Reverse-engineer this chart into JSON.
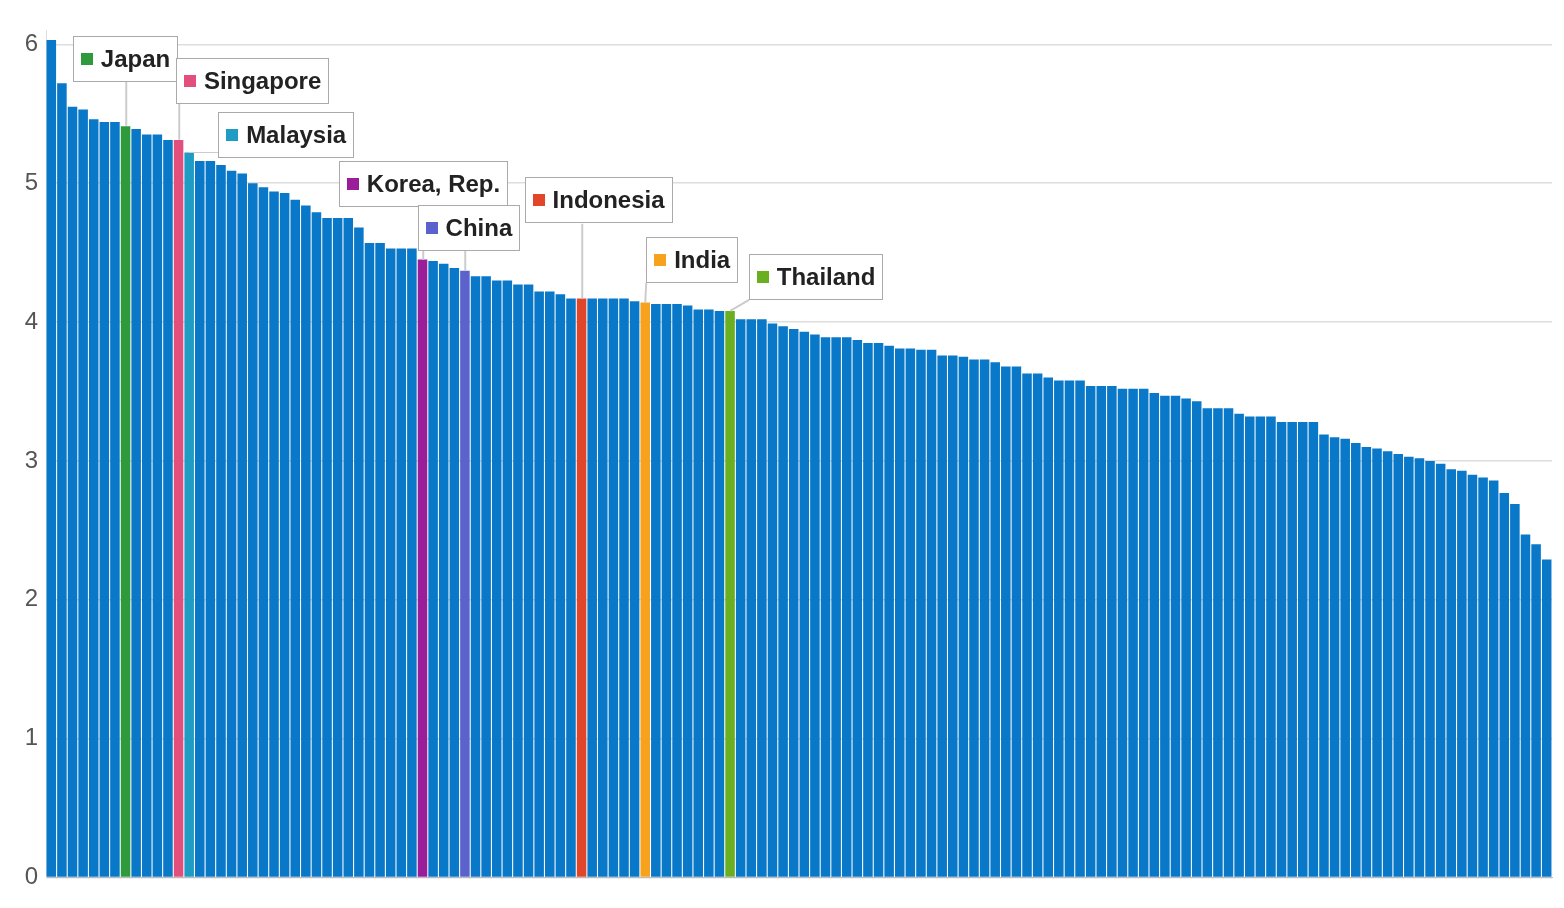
{
  "chart_data": {
    "type": "bar",
    "categories": [
      null,
      null,
      null,
      null,
      null,
      null,
      null,
      null,
      null,
      null,
      null,
      null,
      null,
      null,
      null,
      null,
      null,
      null,
      null,
      null,
      null,
      null,
      null,
      null,
      null,
      null,
      null,
      null,
      null,
      null,
      null,
      null,
      null,
      null,
      null,
      null,
      null,
      null,
      null,
      null,
      null,
      null,
      null,
      null,
      null,
      null,
      null,
      null,
      null,
      null,
      null,
      null,
      null,
      null,
      null,
      null,
      null,
      null,
      null,
      null,
      null,
      null,
      null,
      null,
      null,
      null,
      null,
      null,
      null,
      null,
      null,
      null,
      null,
      null,
      null,
      null,
      null,
      null,
      null,
      null,
      null,
      null,
      null,
      null,
      null,
      null,
      null,
      null,
      null,
      null,
      null,
      null,
      null,
      null,
      null,
      null,
      null,
      null,
      null,
      null,
      null,
      null,
      null,
      null,
      null,
      null,
      null,
      null,
      null,
      null,
      null,
      null,
      null,
      null,
      null,
      null,
      null,
      null,
      null,
      null,
      null,
      null,
      null,
      null,
      null,
      null,
      null,
      null,
      null,
      null,
      null,
      null,
      null,
      null,
      null,
      null,
      null,
      null,
      null,
      null,
      null,
      null
    ],
    "series": [
      {
        "color": "#0a78c8",
        "values": [
          6.03,
          5.72,
          5.55,
          5.53,
          5.46,
          5.44,
          5.44,
          null,
          5.39,
          5.35,
          5.35,
          5.31,
          null,
          null,
          5.16,
          5.16,
          5.13,
          5.09,
          5.07,
          5.0,
          4.97,
          4.94,
          4.93,
          4.88,
          4.84,
          4.79,
          4.75,
          4.75,
          4.75,
          4.68,
          4.57,
          4.57,
          4.53,
          4.53,
          4.53,
          null,
          4.44,
          4.42,
          4.39,
          null,
          4.33,
          4.33,
          4.3,
          4.3,
          4.27,
          4.27,
          4.22,
          4.22,
          4.2,
          4.17,
          null,
          4.17,
          4.17,
          4.17,
          4.17,
          4.15,
          null,
          4.13,
          4.13,
          4.13,
          4.12,
          4.09,
          4.09,
          4.08,
          null,
          4.02,
          4.02,
          4.02,
          3.99,
          3.97,
          3.95,
          3.93,
          3.91,
          3.89,
          3.89,
          3.89,
          3.87,
          3.85,
          3.85,
          3.83,
          3.81,
          3.81,
          3.8,
          3.8,
          3.76,
          3.76,
          3.75,
          3.73,
          3.73,
          3.71,
          3.68,
          3.68,
          3.63,
          3.63,
          3.6,
          3.58,
          3.58,
          3.58,
          3.54,
          3.54,
          3.54,
          3.52,
          3.52,
          3.52,
          3.49,
          3.47,
          3.47,
          3.45,
          3.43,
          3.38,
          3.38,
          3.38,
          3.34,
          3.32,
          3.32,
          3.32,
          3.28,
          3.28,
          3.28,
          3.28,
          3.19,
          3.17,
          3.16,
          3.13,
          3.1,
          3.09,
          3.07,
          3.05,
          3.03,
          3.02,
          3.0,
          2.98,
          2.94,
          2.93,
          2.9,
          2.88,
          2.86,
          2.77,
          2.69,
          2.47,
          2.4,
          2.29
        ]
      },
      {
        "name": "Japan",
        "color": "#2e9a3c",
        "values": [
          null,
          null,
          null,
          null,
          null,
          null,
          null,
          5.41,
          null,
          null,
          null,
          null,
          null,
          null,
          null,
          null,
          null,
          null,
          null,
          null,
          null,
          null,
          null,
          null,
          null,
          null,
          null,
          null,
          null,
          null,
          null,
          null,
          null,
          null,
          null,
          null,
          null,
          null,
          null,
          null,
          null,
          null,
          null,
          null,
          null,
          null,
          null,
          null,
          null,
          null,
          null,
          null,
          null,
          null,
          null,
          null,
          null,
          null,
          null,
          null,
          null,
          null,
          null,
          null,
          null,
          null,
          null,
          null,
          null,
          null,
          null,
          null,
          null,
          null,
          null,
          null,
          null,
          null,
          null,
          null,
          null,
          null,
          null,
          null,
          null,
          null,
          null,
          null,
          null,
          null,
          null,
          null,
          null,
          null,
          null,
          null,
          null,
          null,
          null,
          null,
          null,
          null,
          null,
          null,
          null,
          null,
          null,
          null,
          null,
          null,
          null,
          null,
          null,
          null,
          null,
          null,
          null,
          null,
          null,
          null,
          null,
          null,
          null,
          null,
          null,
          null,
          null,
          null,
          null,
          null,
          null,
          null,
          null,
          null,
          null,
          null,
          null,
          null,
          null,
          null,
          null,
          null
        ]
      },
      {
        "name": "Singapore",
        "color": "#e24f7c",
        "values": [
          null,
          null,
          null,
          null,
          null,
          null,
          null,
          null,
          null,
          null,
          null,
          null,
          5.31,
          null,
          null,
          null,
          null,
          null,
          null,
          null,
          null,
          null,
          null,
          null,
          null,
          null,
          null,
          null,
          null,
          null,
          null,
          null,
          null,
          null,
          null,
          null,
          null,
          null,
          null,
          null,
          null,
          null,
          null,
          null,
          null,
          null,
          null,
          null,
          null,
          null,
          null,
          null,
          null,
          null,
          null,
          null,
          null,
          null,
          null,
          null,
          null,
          null,
          null,
          null,
          null,
          null,
          null,
          null,
          null,
          null,
          null,
          null,
          null,
          null,
          null,
          null,
          null,
          null,
          null,
          null,
          null,
          null,
          null,
          null,
          null,
          null,
          null,
          null,
          null,
          null,
          null,
          null,
          null,
          null,
          null,
          null,
          null,
          null,
          null,
          null,
          null,
          null,
          null,
          null,
          null,
          null,
          null,
          null,
          null,
          null,
          null,
          null,
          null,
          null,
          null,
          null,
          null,
          null,
          null,
          null,
          null,
          null,
          null,
          null,
          null,
          null,
          null,
          null,
          null,
          null,
          null,
          null,
          null,
          null,
          null,
          null,
          null,
          null,
          null,
          null,
          null,
          null
        ]
      },
      {
        "name": "Malaysia",
        "color": "#1e9cc4",
        "values": [
          null,
          null,
          null,
          null,
          null,
          null,
          null,
          null,
          null,
          null,
          null,
          null,
          null,
          5.22,
          null,
          null,
          null,
          null,
          null,
          null,
          null,
          null,
          null,
          null,
          null,
          null,
          null,
          null,
          null,
          null,
          null,
          null,
          null,
          null,
          null,
          null,
          null,
          null,
          null,
          null,
          null,
          null,
          null,
          null,
          null,
          null,
          null,
          null,
          null,
          null,
          null,
          null,
          null,
          null,
          null,
          null,
          null,
          null,
          null,
          null,
          null,
          null,
          null,
          null,
          null,
          null,
          null,
          null,
          null,
          null,
          null,
          null,
          null,
          null,
          null,
          null,
          null,
          null,
          null,
          null,
          null,
          null,
          null,
          null,
          null,
          null,
          null,
          null,
          null,
          null,
          null,
          null,
          null,
          null,
          null,
          null,
          null,
          null,
          null,
          null,
          null,
          null,
          null,
          null,
          null,
          null,
          null,
          null,
          null,
          null,
          null,
          null,
          null,
          null,
          null,
          null,
          null,
          null,
          null,
          null,
          null,
          null,
          null,
          null,
          null,
          null,
          null,
          null,
          null,
          null,
          null,
          null,
          null,
          null,
          null,
          null,
          null,
          null,
          null,
          null,
          null,
          null
        ]
      },
      {
        "name": "Korea, Rep.",
        "color": "#9a1d9a",
        "values": [
          null,
          null,
          null,
          null,
          null,
          null,
          null,
          null,
          null,
          null,
          null,
          null,
          null,
          null,
          null,
          null,
          null,
          null,
          null,
          null,
          null,
          null,
          null,
          null,
          null,
          null,
          null,
          null,
          null,
          null,
          null,
          null,
          null,
          null,
          null,
          4.45,
          null,
          null,
          null,
          null,
          null,
          null,
          null,
          null,
          null,
          null,
          null,
          null,
          null,
          null,
          null,
          null,
          null,
          null,
          null,
          null,
          null,
          null,
          null,
          null,
          null,
          null,
          null,
          null,
          null,
          null,
          null,
          null,
          null,
          null,
          null,
          null,
          null,
          null,
          null,
          null,
          null,
          null,
          null,
          null,
          null,
          null,
          null,
          null,
          null,
          null,
          null,
          null,
          null,
          null,
          null,
          null,
          null,
          null,
          null,
          null,
          null,
          null,
          null,
          null,
          null,
          null,
          null,
          null,
          null,
          null,
          null,
          null,
          null,
          null,
          null,
          null,
          null,
          null,
          null,
          null,
          null,
          null,
          null,
          null,
          null,
          null,
          null,
          null,
          null,
          null,
          null,
          null,
          null,
          null,
          null,
          null,
          null,
          null,
          null,
          null,
          null,
          null,
          null,
          null,
          null,
          null
        ]
      },
      {
        "name": "China",
        "color": "#5b62cc",
        "values": [
          null,
          null,
          null,
          null,
          null,
          null,
          null,
          null,
          null,
          null,
          null,
          null,
          null,
          null,
          null,
          null,
          null,
          null,
          null,
          null,
          null,
          null,
          null,
          null,
          null,
          null,
          null,
          null,
          null,
          null,
          null,
          null,
          null,
          null,
          null,
          null,
          null,
          null,
          null,
          4.37,
          null,
          null,
          null,
          null,
          null,
          null,
          null,
          null,
          null,
          null,
          null,
          null,
          null,
          null,
          null,
          null,
          null,
          null,
          null,
          null,
          null,
          null,
          null,
          null,
          null,
          null,
          null,
          null,
          null,
          null,
          null,
          null,
          null,
          null,
          null,
          null,
          null,
          null,
          null,
          null,
          null,
          null,
          null,
          null,
          null,
          null,
          null,
          null,
          null,
          null,
          null,
          null,
          null,
          null,
          null,
          null,
          null,
          null,
          null,
          null,
          null,
          null,
          null,
          null,
          null,
          null,
          null,
          null,
          null,
          null,
          null,
          null,
          null,
          null,
          null,
          null,
          null,
          null,
          null,
          null,
          null,
          null,
          null,
          null,
          null,
          null,
          null,
          null,
          null,
          null,
          null,
          null,
          null,
          null,
          null,
          null,
          null,
          null,
          null,
          null,
          null,
          null
        ]
      },
      {
        "name": "Indonesia",
        "color": "#e2462a",
        "values": [
          null,
          null,
          null,
          null,
          null,
          null,
          null,
          null,
          null,
          null,
          null,
          null,
          null,
          null,
          null,
          null,
          null,
          null,
          null,
          null,
          null,
          null,
          null,
          null,
          null,
          null,
          null,
          null,
          null,
          null,
          null,
          null,
          null,
          null,
          null,
          null,
          null,
          null,
          null,
          null,
          null,
          null,
          null,
          null,
          null,
          null,
          null,
          null,
          null,
          null,
          4.17,
          null,
          null,
          null,
          null,
          null,
          null,
          null,
          null,
          null,
          null,
          null,
          null,
          null,
          null,
          null,
          null,
          null,
          null,
          null,
          null,
          null,
          null,
          null,
          null,
          null,
          null,
          null,
          null,
          null,
          null,
          null,
          null,
          null,
          null,
          null,
          null,
          null,
          null,
          null,
          null,
          null,
          null,
          null,
          null,
          null,
          null,
          null,
          null,
          null,
          null,
          null,
          null,
          null,
          null,
          null,
          null,
          null,
          null,
          null,
          null,
          null,
          null,
          null,
          null,
          null,
          null,
          null,
          null,
          null,
          null,
          null,
          null,
          null,
          null,
          null,
          null,
          null,
          null,
          null,
          null,
          null,
          null,
          null,
          null,
          null,
          null,
          null,
          null,
          null,
          null,
          null
        ]
      },
      {
        "name": "India",
        "color": "#f7a21e",
        "values": [
          null,
          null,
          null,
          null,
          null,
          null,
          null,
          null,
          null,
          null,
          null,
          null,
          null,
          null,
          null,
          null,
          null,
          null,
          null,
          null,
          null,
          null,
          null,
          null,
          null,
          null,
          null,
          null,
          null,
          null,
          null,
          null,
          null,
          null,
          null,
          null,
          null,
          null,
          null,
          null,
          null,
          null,
          null,
          null,
          null,
          null,
          null,
          null,
          null,
          null,
          null,
          null,
          null,
          null,
          null,
          null,
          4.14,
          null,
          null,
          null,
          null,
          null,
          null,
          null,
          null,
          null,
          null,
          null,
          null,
          null,
          null,
          null,
          null,
          null,
          null,
          null,
          null,
          null,
          null,
          null,
          null,
          null,
          null,
          null,
          null,
          null,
          null,
          null,
          null,
          null,
          null,
          null,
          null,
          null,
          null,
          null,
          null,
          null,
          null,
          null,
          null,
          null,
          null,
          null,
          null,
          null,
          null,
          null,
          null,
          null,
          null,
          null,
          null,
          null,
          null,
          null,
          null,
          null,
          null,
          null,
          null,
          null,
          null,
          null,
          null,
          null,
          null,
          null,
          null,
          null,
          null,
          null,
          null,
          null,
          null,
          null,
          null,
          null,
          null,
          null,
          null,
          null
        ]
      },
      {
        "name": "Thailand",
        "color": "#6aae22",
        "values": [
          null,
          null,
          null,
          null,
          null,
          null,
          null,
          null,
          null,
          null,
          null,
          null,
          null,
          null,
          null,
          null,
          null,
          null,
          null,
          null,
          null,
          null,
          null,
          null,
          null,
          null,
          null,
          null,
          null,
          null,
          null,
          null,
          null,
          null,
          null,
          null,
          null,
          null,
          null,
          null,
          null,
          null,
          null,
          null,
          null,
          null,
          null,
          null,
          null,
          null,
          null,
          null,
          null,
          null,
          null,
          null,
          null,
          null,
          null,
          null,
          null,
          null,
          null,
          null,
          4.08,
          null,
          null,
          null,
          null,
          null,
          null,
          null,
          null,
          null,
          null,
          null,
          null,
          null,
          null,
          null,
          null,
          null,
          null,
          null,
          null,
          null,
          null,
          null,
          null,
          null,
          null,
          null,
          null,
          null,
          null,
          null,
          null,
          null,
          null,
          null,
          null,
          null,
          null,
          null,
          null,
          null,
          null,
          null,
          null,
          null,
          null,
          null,
          null,
          null,
          null,
          null,
          null,
          null,
          null,
          null,
          null,
          null,
          null,
          null,
          null,
          null,
          null,
          null,
          null,
          null,
          null,
          null,
          null,
          null,
          null,
          null,
          null,
          null,
          null,
          null,
          null,
          null
        ]
      }
    ],
    "ylim": [
      0,
      6.1
    ],
    "yticks": [
      0,
      1,
      2,
      3,
      4,
      5,
      6
    ],
    "grid": "y",
    "tick_labels": "y",
    "legend": "top left"
  }
}
